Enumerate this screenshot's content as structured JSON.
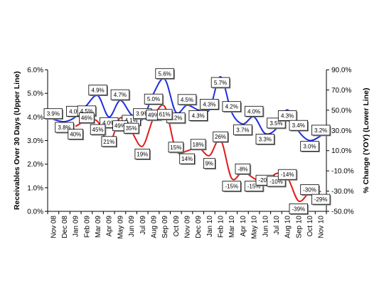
{
  "chart_data": {
    "type": "line",
    "categories": [
      "Nov 08",
      "Dec 08",
      "Jan 09",
      "Feb 09",
      "Mar 09",
      "Apr 09",
      "May 09",
      "Jun 09",
      "Jul 09",
      "Aug 09",
      "Sep 09",
      "Oct 09",
      "Nov 09",
      "Dec 09",
      "Jan 10",
      "Feb 10",
      "Mar 10",
      "Apr 10",
      "May 10",
      "Jun 10",
      "Jul 10",
      "Aug 10",
      "Sep 10",
      "Oct 10",
      "Nov 10"
    ],
    "series": [
      {
        "axis": "left",
        "color": "#1f2fe0",
        "values": [
          3.9,
          3.8,
          4.0,
          4.5,
          4.9,
          4.0,
          4.7,
          4.1,
          3.9,
          5.0,
          5.6,
          4.2,
          4.5,
          4.3,
          4.3,
          5.7,
          4.2,
          3.7,
          4.0,
          3.3,
          3.5,
          4.3,
          3.4,
          3.0,
          3.2
        ],
        "labels": [
          "3.9%",
          "3.8%",
          "4.0%",
          "4.5%",
          "4.9%",
          "4.0%",
          "4.7%",
          "4.1%",
          "3.9%",
          "5.0%",
          "5.6%",
          "4.2%",
          "4.5%",
          "4.3%",
          "4.3%",
          "5.7%",
          "4.2%",
          "3.7%",
          "4.0%",
          "3.3%",
          "3.5%",
          "4.3%",
          "3.4%",
          "3.0%",
          "3.2%"
        ]
      },
      {
        "axis": "right",
        "color": "#e01b1b",
        "values": [
          null,
          null,
          40,
          46,
          45,
          21,
          49,
          35,
          19,
          49,
          61,
          15,
          14,
          18,
          9,
          26,
          -15,
          -8,
          -15,
          -20,
          -10,
          -14,
          -39,
          -30,
          -29
        ],
        "labels": [
          "",
          "",
          "40%",
          "46%",
          "45%",
          "21%",
          "49%",
          "35%",
          "19%",
          "49%",
          "61%",
          "15%",
          "14%",
          "18%",
          "9%",
          "26%",
          "-15%",
          "-8%",
          "-15%",
          "-20%",
          "-10%",
          "-14%",
          "-39%",
          "-30%",
          "-29%"
        ]
      }
    ],
    "ylabel": "Receivables Over 30 Days (Upper Line)",
    "y2label": "% Change (YOY) (Lower Line)",
    "ylim": [
      0,
      6
    ],
    "y2lim": [
      -50,
      100
    ],
    "y_ticks": [
      "0.0%",
      "1.0%",
      "2.0%",
      "3.0%",
      "4.0%",
      "5.0%",
      "6.0%"
    ],
    "y2_ticks": [
      "-50.0%",
      "-30.0%",
      "-10.0%",
      "10.0%",
      "30.0%",
      "50.0%",
      "70.0%",
      "90.0%"
    ],
    "grid": false,
    "legend": "none"
  }
}
